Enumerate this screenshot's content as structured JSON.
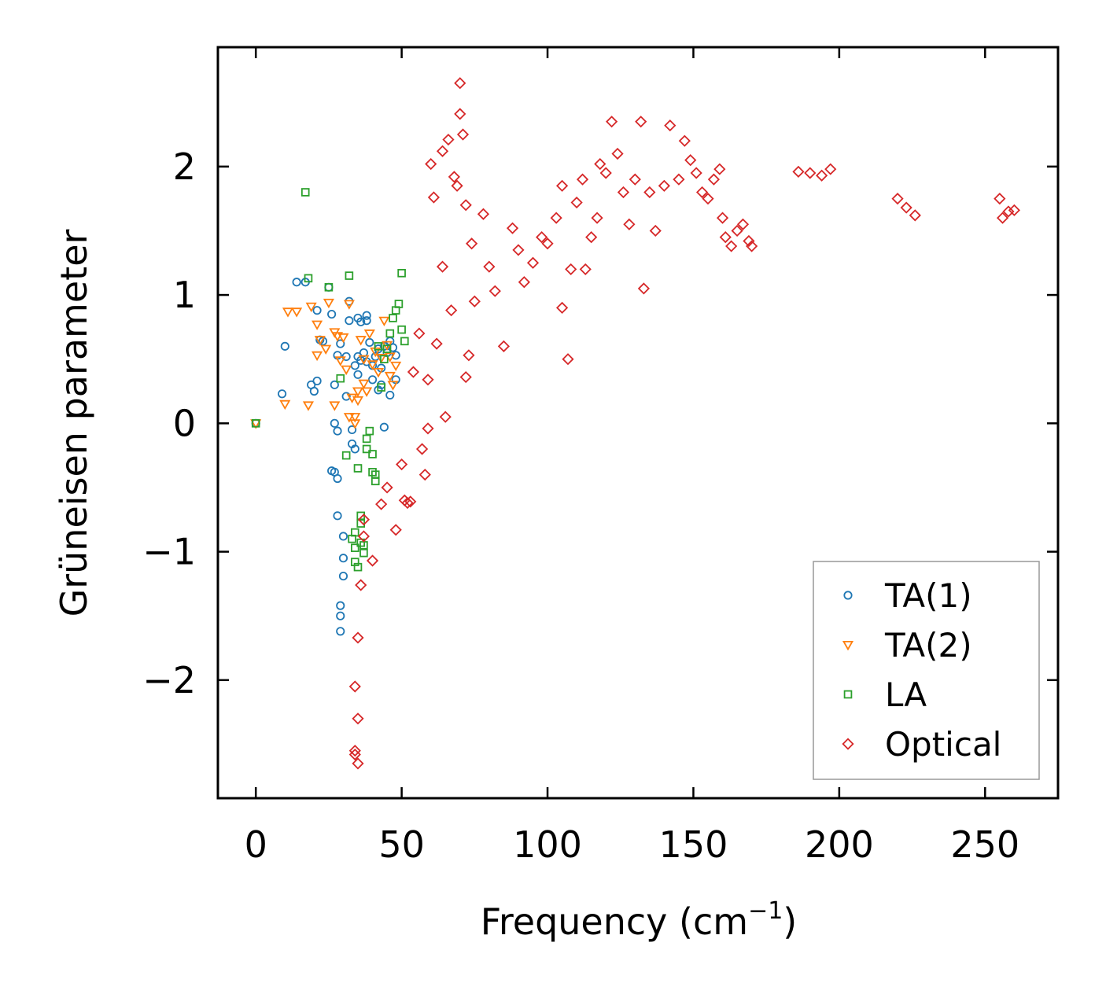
{
  "chart_data": {
    "type": "scatter",
    "title": "",
    "xlabel": "Frequency (cm",
    "xlabel_sup": "−1",
    "xlabel_close": ")",
    "ylabel": "Grüneisen parameter",
    "xlim": [
      -13,
      275
    ],
    "ylim": [
      -2.92,
      2.93
    ],
    "xticks": [
      0,
      50,
      100,
      150,
      200,
      250
    ],
    "xtick_labels": [
      "0",
      "50",
      "100",
      "150",
      "200",
      "250"
    ],
    "yticks": [
      -2,
      -1,
      0,
      1,
      2
    ],
    "ytick_labels": [
      "−2",
      "−1",
      "0",
      "1",
      "2"
    ],
    "legend_position": "lower-right",
    "series": [
      {
        "name": "TA(1)",
        "marker": "circle",
        "color": "#1f77b4",
        "points": [
          [
            0,
            0
          ],
          [
            9,
            0.23
          ],
          [
            10,
            0.6
          ],
          [
            14,
            1.1
          ],
          [
            17,
            1.1
          ],
          [
            19,
            0.3
          ],
          [
            20,
            0.25
          ],
          [
            21,
            0.33
          ],
          [
            21,
            0.88
          ],
          [
            22,
            0.65
          ],
          [
            23,
            0.64
          ],
          [
            25,
            1.06
          ],
          [
            26,
            0.85
          ],
          [
            26,
            -0.37
          ],
          [
            27,
            -0.38
          ],
          [
            27,
            0.3
          ],
          [
            27,
            0.0
          ],
          [
            28,
            -0.43
          ],
          [
            28,
            0.53
          ],
          [
            28,
            -0.72
          ],
          [
            28,
            -0.06
          ],
          [
            29,
            -1.42
          ],
          [
            29,
            -1.5
          ],
          [
            29,
            -1.62
          ],
          [
            29,
            0.62
          ],
          [
            30,
            -1.05
          ],
          [
            30,
            -0.88
          ],
          [
            30,
            -1.19
          ],
          [
            31,
            0.52
          ],
          [
            31,
            0.21
          ],
          [
            32,
            0.95
          ],
          [
            32,
            0.8
          ],
          [
            33,
            -0.05
          ],
          [
            33,
            -0.16
          ],
          [
            34,
            0.45
          ],
          [
            34,
            -0.2
          ],
          [
            35,
            0.82
          ],
          [
            35,
            0.52
          ],
          [
            35,
            0.38
          ],
          [
            36,
            0.79
          ],
          [
            36,
            0.49
          ],
          [
            37,
            0.55
          ],
          [
            38,
            0.8
          ],
          [
            38,
            0.48
          ],
          [
            38,
            0.84
          ],
          [
            39,
            0.63
          ],
          [
            40,
            0.34
          ],
          [
            40,
            0.45
          ],
          [
            41,
            0.52
          ],
          [
            42,
            0.58
          ],
          [
            42,
            0.26
          ],
          [
            43,
            0.3
          ],
          [
            43,
            0.43
          ],
          [
            44,
            -0.03
          ],
          [
            44,
            0.6
          ],
          [
            45,
            0.55
          ],
          [
            46,
            0.22
          ],
          [
            46,
            0.64
          ],
          [
            47,
            0.59
          ],
          [
            48,
            0.34
          ],
          [
            48,
            0.53
          ]
        ]
      },
      {
        "name": "TA(2)",
        "marker": "triangle-down",
        "color": "#ff7f0e",
        "points": [
          [
            0,
            0
          ],
          [
            10,
            0.15
          ],
          [
            11,
            0.87
          ],
          [
            14,
            0.87
          ],
          [
            18,
            0.14
          ],
          [
            19,
            0.91
          ],
          [
            21,
            0.77
          ],
          [
            21,
            0.53
          ],
          [
            22,
            0.65
          ],
          [
            24,
            0.58
          ],
          [
            25,
            0.94
          ],
          [
            27,
            0.71
          ],
          [
            27,
            0.14
          ],
          [
            28,
            0.68
          ],
          [
            29,
            0.49
          ],
          [
            30,
            0.67
          ],
          [
            31,
            0.42
          ],
          [
            32,
            0.93
          ],
          [
            32,
            0.05
          ],
          [
            33,
            0.2
          ],
          [
            34,
            0.05
          ],
          [
            34,
            0.0
          ],
          [
            35,
            0.18
          ],
          [
            35,
            0.25
          ],
          [
            36,
            0.65
          ],
          [
            37,
            0.5
          ],
          [
            37,
            0.31
          ],
          [
            38,
            0.25
          ],
          [
            39,
            0.7
          ],
          [
            40,
            0.46
          ],
          [
            41,
            0.56
          ],
          [
            42,
            0.4
          ],
          [
            43,
            0.51
          ],
          [
            44,
            0.8
          ],
          [
            45,
            0.61
          ],
          [
            46,
            0.37
          ],
          [
            46,
            0.52
          ],
          [
            47,
            0.3
          ],
          [
            48,
            0.45
          ]
        ]
      },
      {
        "name": "LA",
        "marker": "square",
        "color": "#2ca02c",
        "points": [
          [
            0,
            0
          ],
          [
            17,
            1.8
          ],
          [
            18,
            1.13
          ],
          [
            25,
            1.06
          ],
          [
            29,
            0.35
          ],
          [
            31,
            -0.25
          ],
          [
            32,
            1.15
          ],
          [
            33,
            -0.9
          ],
          [
            34,
            -0.85
          ],
          [
            34,
            -1.08
          ],
          [
            34,
            -0.97
          ],
          [
            35,
            -1.12
          ],
          [
            35,
            -0.35
          ],
          [
            36,
            -0.78
          ],
          [
            36,
            -0.93
          ],
          [
            36,
            -0.72
          ],
          [
            37,
            -0.95
          ],
          [
            37,
            -1.01
          ],
          [
            38,
            -0.12
          ],
          [
            38,
            -0.2
          ],
          [
            39,
            -0.06
          ],
          [
            40,
            -0.24
          ],
          [
            40,
            -0.38
          ],
          [
            41,
            -0.45
          ],
          [
            41,
            -0.4
          ],
          [
            42,
            0.6
          ],
          [
            43,
            0.28
          ],
          [
            44,
            0.5
          ],
          [
            45,
            0.58
          ],
          [
            46,
            0.7
          ],
          [
            47,
            0.82
          ],
          [
            48,
            0.88
          ],
          [
            49,
            0.93
          ],
          [
            50,
            1.17
          ],
          [
            50,
            0.73
          ],
          [
            51,
            0.64
          ]
        ]
      },
      {
        "name": "Optical",
        "marker": "diamond",
        "color": "#d62728",
        "points": [
          [
            34,
            -2.58
          ],
          [
            34,
            -2.05
          ],
          [
            34,
            -2.55
          ],
          [
            35,
            -2.3
          ],
          [
            35,
            -2.65
          ],
          [
            35,
            -1.67
          ],
          [
            36,
            -1.26
          ],
          [
            37,
            -0.88
          ],
          [
            37,
            -0.75
          ],
          [
            40,
            -1.07
          ],
          [
            43,
            -0.63
          ],
          [
            45,
            -0.5
          ],
          [
            48,
            -0.83
          ],
          [
            50,
            -0.32
          ],
          [
            51,
            -0.6
          ],
          [
            52,
            -0.62
          ],
          [
            53,
            -0.61
          ],
          [
            54,
            0.4
          ],
          [
            56,
            0.7
          ],
          [
            57,
            -0.2
          ],
          [
            58,
            -0.4
          ],
          [
            59,
            -0.04
          ],
          [
            59,
            0.34
          ],
          [
            60,
            2.02
          ],
          [
            61,
            1.76
          ],
          [
            62,
            0.62
          ],
          [
            64,
            2.12
          ],
          [
            64,
            1.22
          ],
          [
            65,
            0.05
          ],
          [
            66,
            2.21
          ],
          [
            67,
            0.88
          ],
          [
            68,
            1.92
          ],
          [
            69,
            1.85
          ],
          [
            70,
            2.41
          ],
          [
            70,
            2.65
          ],
          [
            71,
            2.25
          ],
          [
            72,
            1.7
          ],
          [
            72,
            0.36
          ],
          [
            73,
            0.53
          ],
          [
            74,
            1.4
          ],
          [
            75,
            0.95
          ],
          [
            78,
            1.63
          ],
          [
            80,
            1.22
          ],
          [
            82,
            1.03
          ],
          [
            85,
            0.6
          ],
          [
            88,
            1.52
          ],
          [
            90,
            1.35
          ],
          [
            92,
            1.1
          ],
          [
            95,
            1.25
          ],
          [
            98,
            1.45
          ],
          [
            100,
            1.4
          ],
          [
            103,
            1.6
          ],
          [
            105,
            1.85
          ],
          [
            105,
            0.9
          ],
          [
            107,
            0.5
          ],
          [
            108,
            1.2
          ],
          [
            110,
            1.72
          ],
          [
            112,
            1.9
          ],
          [
            113,
            1.2
          ],
          [
            115,
            1.45
          ],
          [
            117,
            1.6
          ],
          [
            118,
            2.02
          ],
          [
            120,
            1.95
          ],
          [
            122,
            2.35
          ],
          [
            124,
            2.1
          ],
          [
            126,
            1.8
          ],
          [
            128,
            1.55
          ],
          [
            130,
            1.9
          ],
          [
            132,
            2.35
          ],
          [
            133,
            1.05
          ],
          [
            135,
            1.8
          ],
          [
            137,
            1.5
          ],
          [
            140,
            1.85
          ],
          [
            142,
            2.32
          ],
          [
            145,
            1.9
          ],
          [
            147,
            2.2
          ],
          [
            149,
            2.05
          ],
          [
            151,
            1.95
          ],
          [
            153,
            1.8
          ],
          [
            155,
            1.75
          ],
          [
            157,
            1.9
          ],
          [
            159,
            1.98
          ],
          [
            160,
            1.6
          ],
          [
            161,
            1.45
          ],
          [
            163,
            1.38
          ],
          [
            165,
            1.5
          ],
          [
            167,
            1.55
          ],
          [
            169,
            1.42
          ],
          [
            170,
            1.38
          ],
          [
            186,
            1.96
          ],
          [
            190,
            1.95
          ],
          [
            194,
            1.93
          ],
          [
            197,
            1.98
          ],
          [
            220,
            1.75
          ],
          [
            223,
            1.68
          ],
          [
            226,
            1.62
          ],
          [
            255,
            1.75
          ],
          [
            256,
            1.6
          ],
          [
            258,
            1.65
          ],
          [
            260,
            1.66
          ]
        ]
      }
    ]
  }
}
